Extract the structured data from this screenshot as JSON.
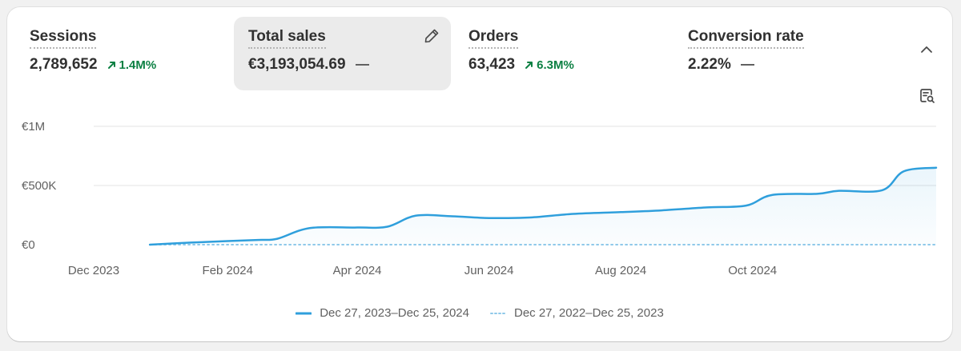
{
  "metrics": [
    {
      "label": "Sessions",
      "value": "2,789,652",
      "change": "1.4M%",
      "trend": "up"
    },
    {
      "label": "Total sales",
      "value": "€3,193,054.69",
      "change": "",
      "trend": "flat"
    },
    {
      "label": "Orders",
      "value": "63,423",
      "change": "6.3M%",
      "trend": "up"
    },
    {
      "label": "Conversion rate",
      "value": "2.22%",
      "change": "",
      "trend": "flat"
    }
  ],
  "colors": {
    "primary": "#2f9fdc",
    "comparison": "#8fc9ea",
    "positive": "#0c8043"
  },
  "icons": [
    "pencil-icon",
    "chevron-up-icon",
    "report-search-icon",
    "arrow-up-right-icon"
  ],
  "chart_data": {
    "type": "line",
    "y_ticks": [
      "€1M",
      "€500K",
      "€0"
    ],
    "ylim": [
      0,
      1000000
    ],
    "x_ticks": [
      "Dec 2023",
      "Feb 2024",
      "Apr 2024",
      "Jun 2024",
      "Aug 2024",
      "Oct 2024"
    ],
    "grid": true,
    "legend_position": "bottom-center",
    "series": [
      {
        "name": "Dec 27, 2023–Dec 25, 2024",
        "style": "solid",
        "x": [
          "2023-12-27",
          "2024-01-15",
          "2024-02-01",
          "2024-02-15",
          "2024-02-24",
          "2024-03-10",
          "2024-04-01",
          "2024-04-15",
          "2024-04-28",
          "2024-05-15",
          "2024-06-01",
          "2024-06-20",
          "2024-07-10",
          "2024-08-01",
          "2024-08-20",
          "2024-09-10",
          "2024-09-28",
          "2024-10-10",
          "2024-10-31",
          "2024-11-10",
          "2024-11-30",
          "2024-12-10",
          "2024-12-25"
        ],
        "values": [
          0,
          18000,
          30000,
          40000,
          50000,
          140000,
          145000,
          152000,
          245000,
          240000,
          225000,
          230000,
          260000,
          275000,
          290000,
          315000,
          330000,
          420000,
          430000,
          455000,
          460000,
          620000,
          650000
        ]
      },
      {
        "name": "Dec 27, 2022–Dec 25, 2023",
        "style": "dotted",
        "x": [
          "2023-12-27",
          "2024-12-25"
        ],
        "values": [
          0,
          0
        ]
      }
    ]
  }
}
